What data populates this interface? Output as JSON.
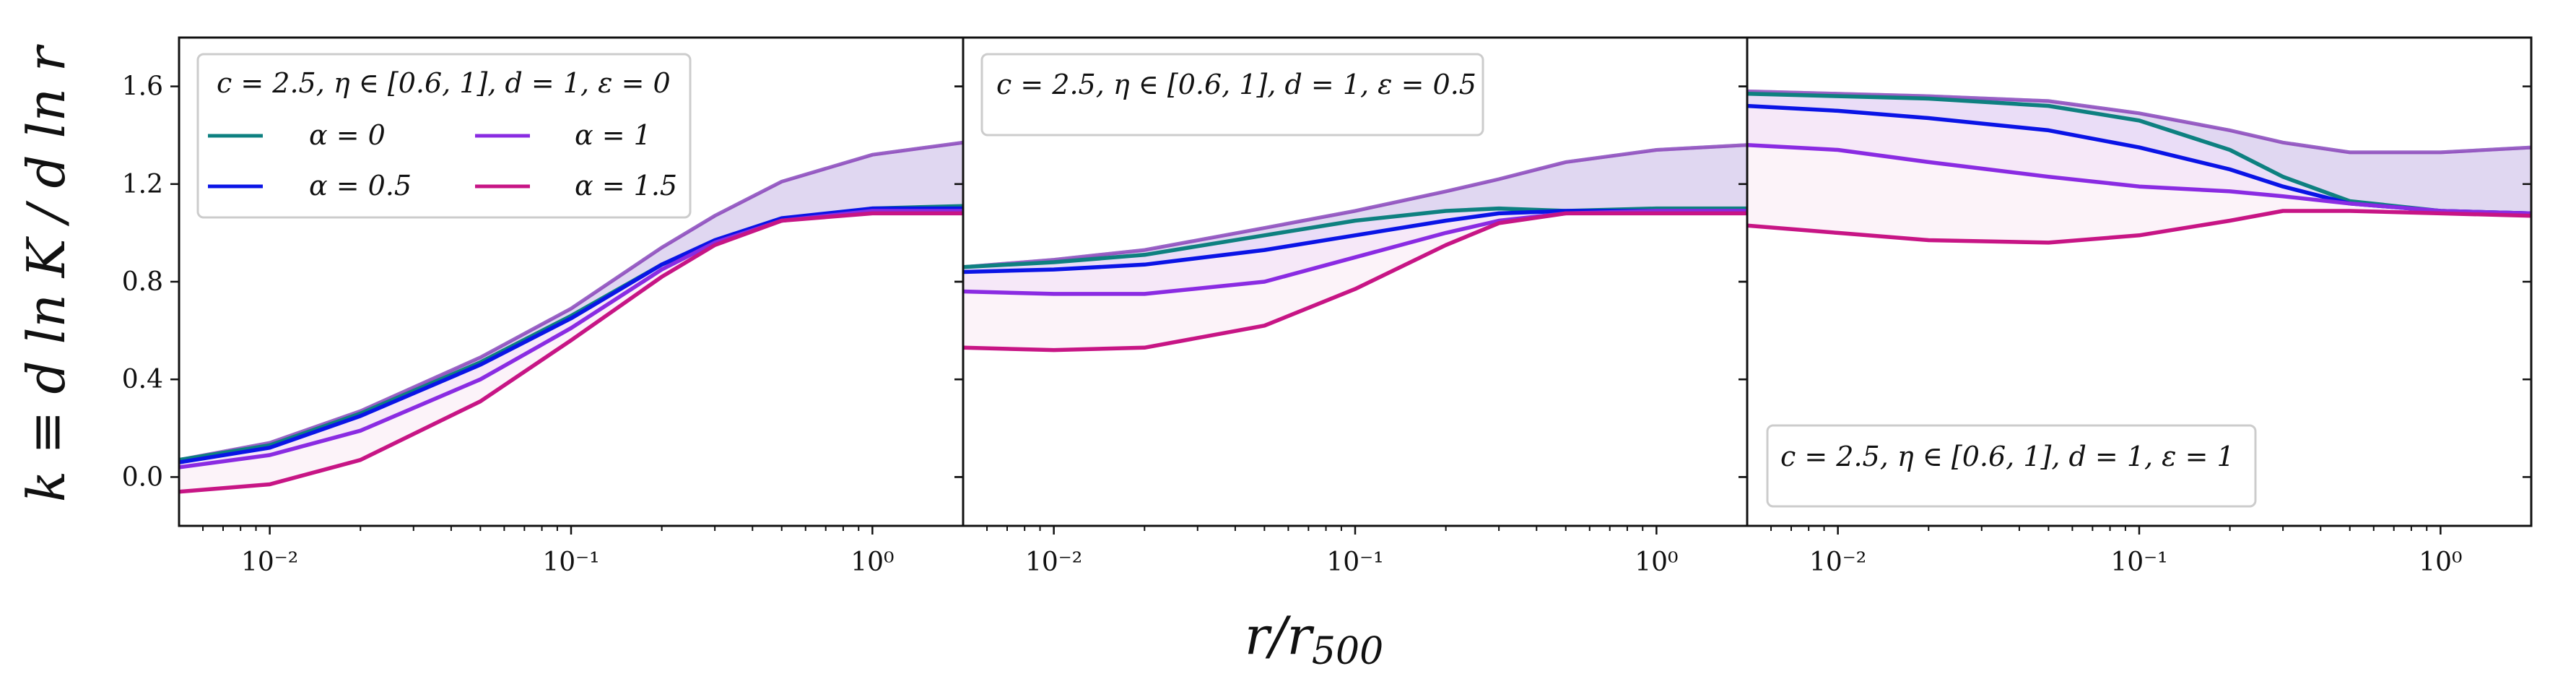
{
  "figure": {
    "ylabel": "k ≡ d ln K / d ln r",
    "xlabel": "r/r500",
    "xlabel_parts": {
      "main": "r/r",
      "sub": "500"
    }
  },
  "colors": {
    "alpha_0": "#0e8080",
    "alpha_0_5": "#0a14e6",
    "alpha_1": "#8a2be2",
    "alpha_1_5": "#c71585"
  },
  "legend": {
    "title": "c = 2.5,  η ∈ [0.6, 1],  d = 1,  ε = 0",
    "entries": [
      {
        "label": "α = 0",
        "color": "#0e8080"
      },
      {
        "label": "α = 1",
        "color": "#8a2be2"
      },
      {
        "label": "α = 0.5",
        "color": "#0a14e6"
      },
      {
        "label": "α = 1.5",
        "color": "#c71585"
      }
    ]
  },
  "annotations": {
    "panel2": "c = 2.5,  η ∈ [0.6, 1],  d = 1,  ε = 0.5",
    "panel3": "c = 2.5,  η ∈ [0.6, 1],  d = 1,  ε = 1"
  },
  "chart_data": [
    {
      "type": "line",
      "xscale": "log",
      "xlim": [
        0.005,
        2
      ],
      "ylim": [
        -0.2,
        1.8
      ],
      "xticks": [
        {
          "value": 0.01,
          "label": "10⁻²"
        },
        {
          "value": 0.1,
          "label": "10⁻¹"
        },
        {
          "value": 1,
          "label": "10⁰"
        }
      ],
      "yticks": [
        {
          "value": 0.0,
          "label": "0.0"
        },
        {
          "value": 0.4,
          "label": "0.4"
        },
        {
          "value": 0.8,
          "label": "0.8"
        },
        {
          "value": 1.2,
          "label": "1.2"
        },
        {
          "value": 1.6,
          "label": "1.6"
        }
      ],
      "legend_position": "upper-left",
      "series": [
        {
          "name": "α = 0",
          "color": "#0e8080",
          "x": [
            0.005,
            0.01,
            0.02,
            0.05,
            0.1,
            0.2,
            0.3,
            0.5,
            1,
            2
          ],
          "y": [
            0.07,
            0.13,
            0.26,
            0.47,
            0.66,
            0.87,
            0.96,
            1.05,
            1.1,
            1.11
          ]
        },
        {
          "name": "α = 0.5",
          "color": "#0a14e6",
          "x": [
            0.005,
            0.01,
            0.02,
            0.05,
            0.1,
            0.2,
            0.3,
            0.5,
            1,
            2
          ],
          "y": [
            0.06,
            0.12,
            0.25,
            0.46,
            0.65,
            0.87,
            0.97,
            1.06,
            1.1,
            1.1
          ]
        },
        {
          "name": "α = 1",
          "color": "#8a2be2",
          "x": [
            0.005,
            0.01,
            0.02,
            0.05,
            0.1,
            0.2,
            0.3,
            0.5,
            1,
            2
          ],
          "y": [
            0.04,
            0.09,
            0.19,
            0.4,
            0.61,
            0.85,
            0.96,
            1.05,
            1.09,
            1.09
          ]
        },
        {
          "name": "α = 1.5",
          "color": "#c71585",
          "x": [
            0.005,
            0.01,
            0.02,
            0.05,
            0.1,
            0.2,
            0.3,
            0.5,
            1,
            2
          ],
          "y": [
            -0.06,
            -0.03,
            0.07,
            0.31,
            0.56,
            0.82,
            0.95,
            1.05,
            1.08,
            1.08
          ]
        }
      ],
      "faded_band_upper": {
        "x": [
          0.005,
          0.01,
          0.02,
          0.05,
          0.1,
          0.2,
          0.3,
          0.5,
          1,
          2
        ],
        "y": [
          0.07,
          0.14,
          0.27,
          0.49,
          0.69,
          0.94,
          1.07,
          1.21,
          1.32,
          1.37
        ]
      }
    },
    {
      "type": "line",
      "xscale": "log",
      "xlim": [
        0.005,
        2
      ],
      "ylim": [
        -0.2,
        1.8
      ],
      "xticks": [
        {
          "value": 0.01,
          "label": "10⁻²"
        },
        {
          "value": 0.1,
          "label": "10⁻¹"
        },
        {
          "value": 1,
          "label": "10⁰"
        }
      ],
      "series": [
        {
          "name": "α = 0",
          "color": "#0e8080",
          "x": [
            0.005,
            0.01,
            0.02,
            0.05,
            0.1,
            0.2,
            0.3,
            0.5,
            1,
            2
          ],
          "y": [
            0.86,
            0.88,
            0.91,
            0.99,
            1.05,
            1.09,
            1.1,
            1.09,
            1.1,
            1.1
          ]
        },
        {
          "name": "α = 0.5",
          "color": "#0a14e6",
          "x": [
            0.005,
            0.01,
            0.02,
            0.05,
            0.1,
            0.2,
            0.3,
            0.5,
            1,
            2
          ],
          "y": [
            0.84,
            0.85,
            0.87,
            0.93,
            0.99,
            1.05,
            1.08,
            1.09,
            1.09,
            1.09
          ]
        },
        {
          "name": "α = 1",
          "color": "#8a2be2",
          "x": [
            0.005,
            0.01,
            0.02,
            0.05,
            0.1,
            0.2,
            0.3,
            0.5,
            1,
            2
          ],
          "y": [
            0.76,
            0.75,
            0.75,
            0.8,
            0.9,
            1.0,
            1.05,
            1.08,
            1.09,
            1.09
          ]
        },
        {
          "name": "α = 1.5",
          "color": "#c71585",
          "x": [
            0.005,
            0.01,
            0.02,
            0.05,
            0.1,
            0.2,
            0.3,
            0.5,
            1,
            2
          ],
          "y": [
            0.53,
            0.52,
            0.53,
            0.62,
            0.77,
            0.95,
            1.04,
            1.08,
            1.08,
            1.08
          ]
        }
      ],
      "faded_band_upper": {
        "x": [
          0.005,
          0.01,
          0.02,
          0.05,
          0.1,
          0.2,
          0.3,
          0.5,
          1,
          2
        ],
        "y": [
          0.86,
          0.89,
          0.93,
          1.02,
          1.09,
          1.17,
          1.22,
          1.29,
          1.34,
          1.36
        ]
      }
    },
    {
      "type": "line",
      "xscale": "log",
      "xlim": [
        0.005,
        2
      ],
      "ylim": [
        -0.2,
        1.8
      ],
      "xticks": [
        {
          "value": 0.01,
          "label": "10⁻²"
        },
        {
          "value": 0.1,
          "label": "10⁻¹"
        },
        {
          "value": 1,
          "label": "10⁰"
        }
      ],
      "series": [
        {
          "name": "α = 0",
          "color": "#0e8080",
          "x": [
            0.005,
            0.01,
            0.02,
            0.05,
            0.1,
            0.2,
            0.3,
            0.5,
            1,
            2
          ],
          "y": [
            1.57,
            1.56,
            1.55,
            1.52,
            1.46,
            1.34,
            1.23,
            1.13,
            1.09,
            1.08
          ]
        },
        {
          "name": "α = 0.5",
          "color": "#0a14e6",
          "x": [
            0.005,
            0.01,
            0.02,
            0.05,
            0.1,
            0.2,
            0.3,
            0.5,
            1,
            2
          ],
          "y": [
            1.52,
            1.5,
            1.47,
            1.42,
            1.35,
            1.26,
            1.19,
            1.12,
            1.09,
            1.08
          ]
        },
        {
          "name": "α = 1",
          "color": "#8a2be2",
          "x": [
            0.005,
            0.01,
            0.02,
            0.05,
            0.1,
            0.2,
            0.3,
            0.5,
            1,
            2
          ],
          "y": [
            1.36,
            1.34,
            1.29,
            1.23,
            1.19,
            1.17,
            1.15,
            1.12,
            1.09,
            1.08
          ]
        },
        {
          "name": "α = 1.5",
          "color": "#c71585",
          "x": [
            0.005,
            0.01,
            0.02,
            0.05,
            0.1,
            0.2,
            0.3,
            0.5,
            1,
            2
          ],
          "y": [
            1.03,
            1.0,
            0.97,
            0.96,
            0.99,
            1.05,
            1.09,
            1.09,
            1.08,
            1.07
          ]
        }
      ],
      "faded_band_upper": {
        "x": [
          0.005,
          0.01,
          0.02,
          0.05,
          0.1,
          0.2,
          0.3,
          0.5,
          1,
          2
        ],
        "y": [
          1.58,
          1.57,
          1.56,
          1.54,
          1.49,
          1.42,
          1.37,
          1.33,
          1.33,
          1.35
        ]
      }
    }
  ]
}
